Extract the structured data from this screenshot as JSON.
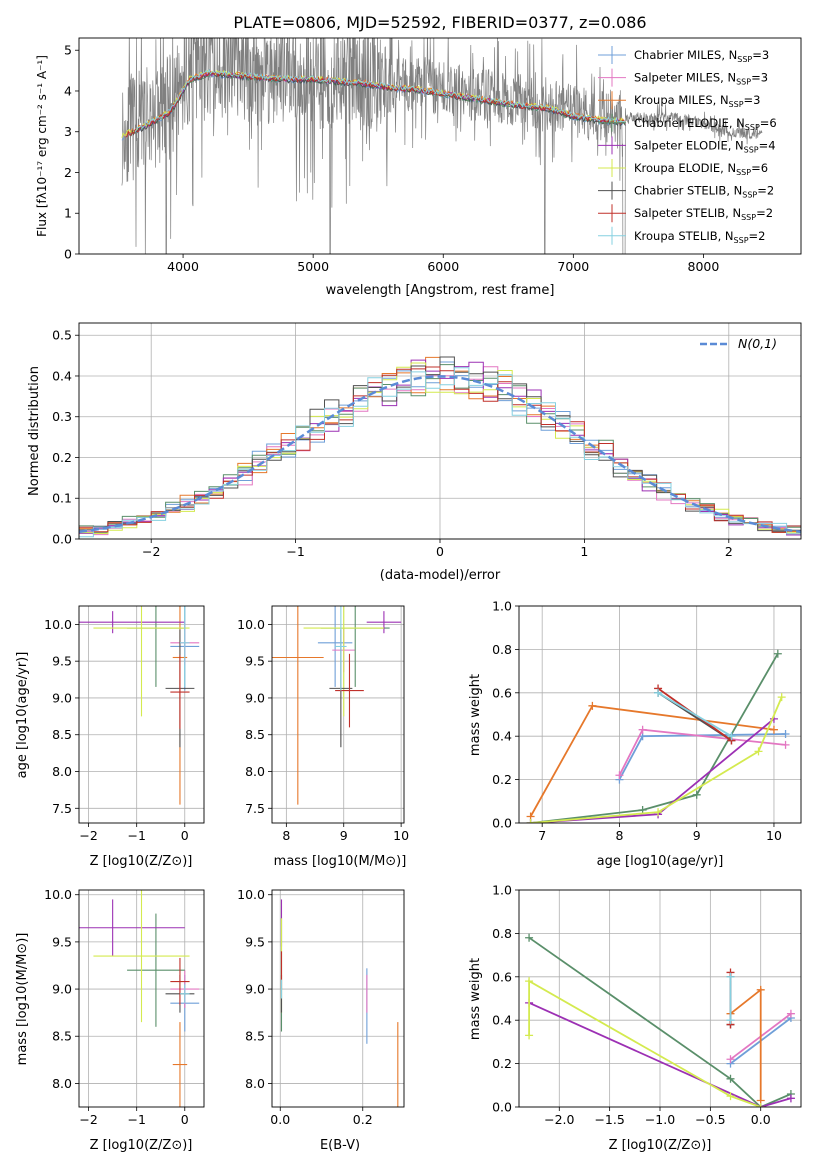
{
  "title": "PLATE=0806, MJD=52592, FIBERID=0377, z=0.086",
  "model_colors": [
    "#6f9fd8",
    "#e377c2",
    "#e6782b",
    "#5a8f6a",
    "#9c30b4",
    "#d4ea4f",
    "#505050",
    "#c0302a",
    "#86d0e0"
  ],
  "chart_data": [
    {
      "id": "spectrum",
      "type": "line",
      "xlabel": "wavelength [Angstrom, rest frame]",
      "ylabel": "Flux [fλ10⁻¹⁷ erg cm⁻² s⁻¹ A⁻¹]",
      "xlim": [
        3200,
        8750
      ],
      "ylim": [
        0,
        5.3
      ],
      "xticks": [
        4000,
        5000,
        6000,
        7000,
        8000
      ],
      "yticks": [
        0,
        1,
        2,
        3,
        4,
        5
      ],
      "legend_location": "top-right",
      "legend": [
        "Chabrier MILES, N_SSP=3",
        "Salpeter MILES, N_SSP=3",
        "Kroupa MILES, N_SSP=3",
        "Chabrier ELODIE, N_SSP=6",
        "Salpeter ELODIE, N_SSP=4",
        "Kroupa ELODIE, N_SSP=6",
        "Chabrier STELIB, N_SSP=2",
        "Salpeter STELIB, N_SSP=2",
        "Kroupa STELIB, N_SSP=2"
      ],
      "data_color": "#808080",
      "data_envelope": {
        "x": [
          3530,
          3700,
          3900,
          4050,
          4200,
          4400,
          4600,
          4800,
          5000,
          5200,
          5400,
          5600,
          5800,
          6000,
          6200,
          6400,
          6600,
          6800,
          7000,
          7200,
          7400,
          7600,
          7800,
          8000,
          8200,
          8400
        ],
        "y": [
          3.0,
          3.25,
          3.6,
          4.4,
          4.55,
          4.5,
          4.45,
          4.4,
          4.4,
          4.35,
          4.3,
          4.2,
          4.15,
          4.05,
          3.95,
          3.85,
          3.75,
          3.7,
          3.5,
          3.4,
          3.35,
          3.35,
          3.35,
          3.2,
          3.0,
          2.95
        ]
      }
    },
    {
      "id": "residuals",
      "type": "line",
      "xlabel": "(data-model)/error",
      "ylabel": "Normed distribution",
      "xlim": [
        -2.5,
        2.5
      ],
      "ylim": [
        0,
        0.53
      ],
      "xticks": [
        -2,
        -1,
        0,
        1,
        2
      ],
      "yticks": [
        0.0,
        0.1,
        0.2,
        0.3,
        0.4,
        0.5
      ],
      "grid": true,
      "legend_location": "top-right",
      "reference_curve": {
        "label": "N(0,1)",
        "mean": 0,
        "sigma": 1,
        "color": "#5b8bd6"
      }
    },
    {
      "id": "age_vs_Z",
      "type": "scatter",
      "xlabel": "Z [log10(Z/Z⊙)]",
      "ylabel": "age  [log10(age/yr)]",
      "xlim": [
        -2.2,
        0.4
      ],
      "ylim": [
        7.3,
        10.25
      ],
      "xticks": [
        -2,
        -1,
        0
      ],
      "yticks": [
        7.5,
        8.0,
        8.5,
        9.0,
        9.5,
        10.0
      ],
      "grid": true,
      "points": [
        {
          "x": 0.0,
          "y": 9.7,
          "xerr": 0.3,
          "yerr": 0.6
        },
        {
          "x": 0.0,
          "y": 9.75,
          "xerr": 0.3,
          "yerr": 0.3
        },
        {
          "x": -0.1,
          "y": 9.55,
          "xerr": 0.15,
          "yerr": 2.0
        },
        {
          "x": -0.6,
          "y": 9.95,
          "xerr": 0.6,
          "yerr": 0.8
        },
        {
          "x": -1.5,
          "y": 10.03,
          "xerr": 1.5,
          "yerr": 0.15
        },
        {
          "x": -0.9,
          "y": 9.95,
          "xerr": 1.0,
          "yerr": 1.2
        },
        {
          "x": -0.1,
          "y": 9.13,
          "xerr": 0.3,
          "yerr": 0.8
        },
        {
          "x": -0.1,
          "y": 9.08,
          "xerr": 0.2,
          "yerr": 0.5
        },
        {
          "x": 0.0,
          "y": 9.75,
          "xerr": 0.1,
          "yerr": 0.6
        }
      ]
    },
    {
      "id": "age_vs_mass",
      "type": "scatter",
      "xlabel": "mass [log10(M/M⊙)]",
      "xlim": [
        7.75,
        10.05
      ],
      "ylim": [
        7.3,
        10.25
      ],
      "xticks": [
        8,
        9,
        10
      ],
      "yticks": [
        7.5,
        8.0,
        8.5,
        9.0,
        9.5,
        10.0
      ],
      "grid": true,
      "points": [
        {
          "x": 8.85,
          "y": 9.75,
          "xerr": 0.3,
          "yerr": 0.6
        },
        {
          "x": 9.0,
          "y": 9.65,
          "xerr": 0.2,
          "yerr": 0.3
        },
        {
          "x": 8.2,
          "y": 9.55,
          "xerr": 0.45,
          "yerr": 2.0
        },
        {
          "x": 9.2,
          "y": 9.95,
          "xerr": 0.6,
          "yerr": 0.8
        },
        {
          "x": 9.7,
          "y": 10.03,
          "xerr": 0.3,
          "yerr": 0.15
        },
        {
          "x": 9.0,
          "y": 9.95,
          "xerr": 0.7,
          "yerr": 1.2
        },
        {
          "x": 8.95,
          "y": 9.13,
          "xerr": 0.2,
          "yerr": 0.8
        },
        {
          "x": 9.1,
          "y": 9.1,
          "xerr": 0.25,
          "yerr": 0.5
        },
        {
          "x": 8.95,
          "y": 9.7,
          "xerr": 0.1,
          "yerr": 0.6
        }
      ]
    },
    {
      "id": "weight_vs_age",
      "type": "line",
      "xlabel": "age  [log10(age/yr)]",
      "ylabel": "mass weight",
      "xlim": [
        6.7,
        10.35
      ],
      "ylim": [
        0,
        1.0
      ],
      "xticks": [
        7,
        8,
        9,
        10
      ],
      "yticks": [
        0.0,
        0.2,
        0.4,
        0.6,
        0.8,
        1.0
      ],
      "grid": true,
      "series": [
        {
          "x": [
            8.0,
            8.3,
            10.15
          ],
          "y": [
            0.2,
            0.4,
            0.41
          ]
        },
        {
          "x": [
            8.0,
            8.3,
            10.15
          ],
          "y": [
            0.22,
            0.43,
            0.36
          ]
        },
        {
          "x": [
            6.85,
            7.65,
            10.0
          ],
          "y": [
            0.03,
            0.54,
            0.43
          ]
        },
        {
          "x": [
            6.85,
            8.3,
            9.0,
            10.05
          ],
          "y": [
            0.0,
            0.06,
            0.13,
            0.78
          ]
        },
        {
          "x": [
            6.85,
            8.5,
            10.0
          ],
          "y": [
            0.0,
            0.04,
            0.48
          ]
        },
        {
          "x": [
            6.85,
            8.5,
            9.8,
            10.1
          ],
          "y": [
            0.0,
            0.05,
            0.33,
            0.58
          ]
        },
        {
          "x": [
            8.5,
            9.45
          ],
          "y": [
            0.6,
            0.38
          ]
        },
        {
          "x": [
            8.5,
            9.45
          ],
          "y": [
            0.62,
            0.38
          ]
        },
        {
          "x": [
            8.5,
            9.45
          ],
          "y": [
            0.6,
            0.4
          ]
        }
      ]
    },
    {
      "id": "mass_vs_Z",
      "type": "scatter",
      "xlabel": "Z [log10(Z/Z⊙)]",
      "ylabel": "mass [log10(M/M⊙)]",
      "xlim": [
        -2.2,
        0.4
      ],
      "ylim": [
        7.75,
        10.05
      ],
      "xticks": [
        -2,
        -1,
        0
      ],
      "yticks": [
        8.0,
        8.5,
        9.0,
        9.5,
        10.0
      ],
      "grid": true,
      "points": [
        {
          "x": 0.0,
          "y": 8.85,
          "xerr": 0.3,
          "yerr": 0.3
        },
        {
          "x": 0.0,
          "y": 9.0,
          "xerr": 0.3,
          "yerr": 0.2
        },
        {
          "x": -0.1,
          "y": 8.2,
          "xerr": 0.15,
          "yerr": 0.45
        },
        {
          "x": -0.6,
          "y": 9.2,
          "xerr": 0.6,
          "yerr": 0.6
        },
        {
          "x": -1.5,
          "y": 9.65,
          "xerr": 1.5,
          "yerr": 0.3
        },
        {
          "x": -0.9,
          "y": 9.35,
          "xerr": 1.0,
          "yerr": 0.7
        },
        {
          "x": -0.1,
          "y": 8.95,
          "xerr": 0.3,
          "yerr": 0.2
        },
        {
          "x": -0.1,
          "y": 9.08,
          "xerr": 0.2,
          "yerr": 0.25
        },
        {
          "x": 0.0,
          "y": 8.95,
          "xerr": 0.1,
          "yerr": 0.1
        }
      ]
    },
    {
      "id": "mass_vs_ebv",
      "type": "scatter",
      "xlabel": "E(B-V)",
      "xlim": [
        -0.02,
        0.3
      ],
      "ylim": [
        7.75,
        10.05
      ],
      "xticks": [
        0.0,
        0.2
      ],
      "yticks": [
        8.0,
        8.5,
        9.0,
        9.5,
        10.0
      ],
      "grid": true,
      "points": [
        {
          "x": 0.21,
          "y": 8.82,
          "xerr": 0.0,
          "yerr": 0.4
        },
        {
          "x": 0.21,
          "y": 8.95,
          "xerr": 0.0,
          "yerr": 0.2
        },
        {
          "x": 0.285,
          "y": 8.2,
          "xerr": 0.0,
          "yerr": 0.45
        },
        {
          "x": 0.003,
          "y": 9.15,
          "xerr": 0.0,
          "yerr": 0.6
        },
        {
          "x": 0.003,
          "y": 9.7,
          "xerr": 0.0,
          "yerr": 0.25
        },
        {
          "x": 0.003,
          "y": 9.25,
          "xerr": 0.0,
          "yerr": 0.5
        },
        {
          "x": 0.003,
          "y": 8.95,
          "xerr": 0.0,
          "yerr": 0.2
        },
        {
          "x": 0.003,
          "y": 9.2,
          "xerr": 0.0,
          "yerr": 0.2
        },
        {
          "x": 0.003,
          "y": 9.0,
          "xerr": 0.0,
          "yerr": 0.1
        }
      ]
    },
    {
      "id": "weight_vs_Z",
      "type": "line",
      "xlabel": "Z [log10(Z/Z⊙)]",
      "ylabel": "mass weight",
      "xlim": [
        -2.4,
        0.4
      ],
      "ylim": [
        0,
        1.0
      ],
      "xticks": [
        -2.0,
        -1.5,
        -1.0,
        -0.5,
        0.0
      ],
      "yticks": [
        0.0,
        0.2,
        0.4,
        0.6,
        0.8,
        1.0
      ],
      "grid": true,
      "series": [
        {
          "x": [
            -0.3,
            0.3
          ],
          "y": [
            0.2,
            0.41
          ]
        },
        {
          "x": [
            -0.3,
            0.3
          ],
          "y": [
            0.22,
            0.43
          ]
        },
        {
          "x": [
            0.0,
            0.0,
            -0.3
          ],
          "y": [
            0.03,
            0.54,
            0.43
          ]
        },
        {
          "x": [
            -2.3,
            -0.3,
            0.0,
            0.3
          ],
          "y": [
            0.78,
            0.13,
            0.0,
            0.06
          ]
        },
        {
          "x": [
            -2.3,
            0.0,
            0.3
          ],
          "y": [
            0.48,
            0.0,
            0.04
          ]
        },
        {
          "x": [
            -2.3,
            -2.3,
            -0.3,
            0.0
          ],
          "y": [
            0.33,
            0.58,
            0.05,
            0.0
          ]
        },
        {
          "x": [
            -0.3,
            -0.3
          ],
          "y": [
            0.38,
            0.6
          ]
        },
        {
          "x": [
            -0.3,
            -0.3
          ],
          "y": [
            0.38,
            0.62
          ]
        },
        {
          "x": [
            -0.3,
            -0.3
          ],
          "y": [
            0.4,
            0.6
          ]
        }
      ]
    }
  ]
}
